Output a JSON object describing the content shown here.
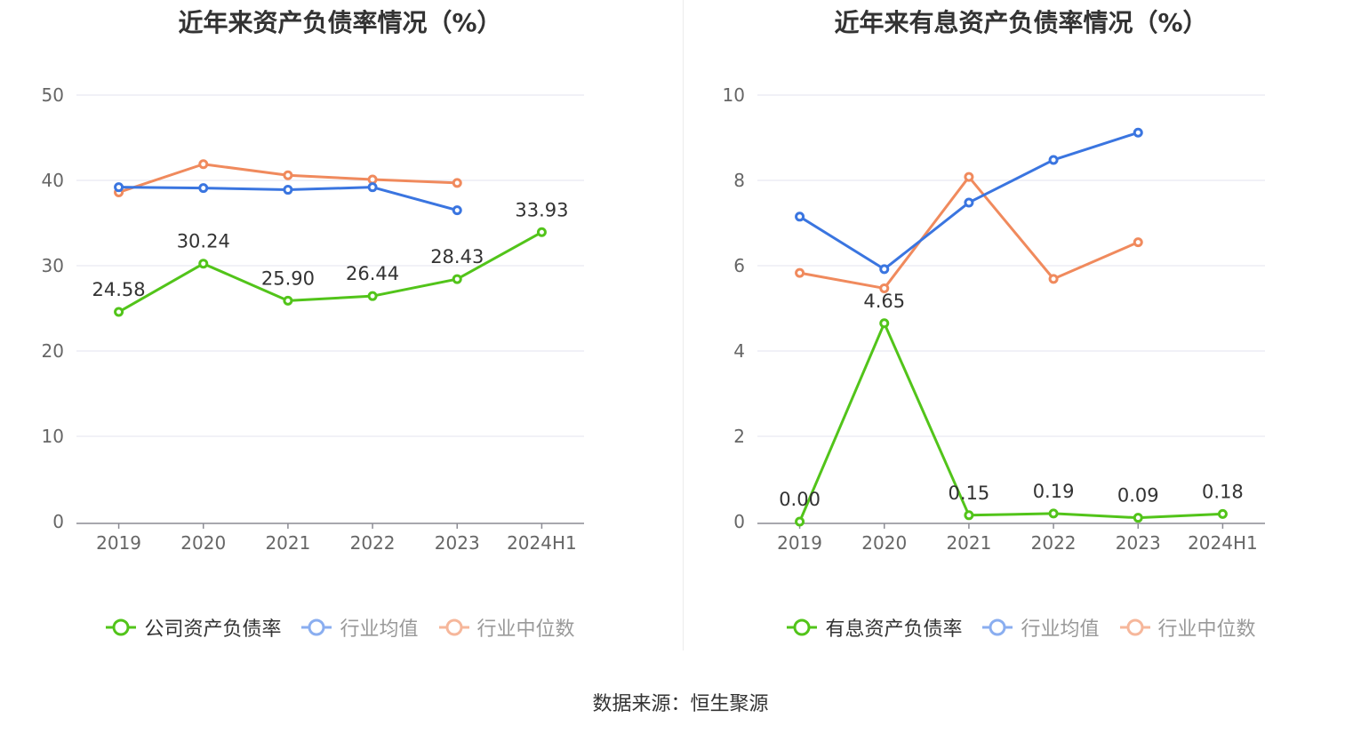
{
  "source": "数据来源：恒生聚源",
  "chart_data": [
    {
      "type": "line",
      "title": "近年来资产负债率情况（%）",
      "categories": [
        "2019",
        "2020",
        "2021",
        "2022",
        "2023",
        "2024H1"
      ],
      "ylim": [
        0,
        50
      ],
      "yticks": [
        0,
        10,
        20,
        30,
        40,
        50
      ],
      "grid": true,
      "legend_position": "bottom",
      "series": [
        {
          "name": "公司资产负债率",
          "color": "#52c41a",
          "values": [
            24.58,
            30.24,
            25.9,
            26.44,
            28.43,
            33.93
          ],
          "labels": [
            "24.58",
            "30.24",
            "25.90",
            "26.44",
            "28.43",
            "33.93"
          ]
        },
        {
          "name": "行业均值",
          "color": "#3a75e0",
          "values": [
            39.2,
            39.1,
            38.9,
            39.2,
            36.5,
            null
          ]
        },
        {
          "name": "行业中位数",
          "color": "#f08a5d",
          "values": [
            38.6,
            41.9,
            40.6,
            40.1,
            39.7,
            null
          ]
        }
      ]
    },
    {
      "type": "line",
      "title": "近年来有息资产负债率情况（%）",
      "categories": [
        "2019",
        "2020",
        "2021",
        "2022",
        "2023",
        "2024H1"
      ],
      "ylim": [
        0,
        10
      ],
      "yticks": [
        0,
        2,
        4,
        6,
        8,
        10
      ],
      "grid": true,
      "legend_position": "bottom",
      "series": [
        {
          "name": "有息资产负债率",
          "color": "#52c41a",
          "values": [
            0.0,
            4.65,
            0.15,
            0.19,
            0.09,
            0.18
          ],
          "labels": [
            "0.00",
            "4.65",
            "0.15",
            "0.19",
            "0.09",
            "0.18"
          ]
        },
        {
          "name": "行业均值",
          "color": "#3a75e0",
          "values": [
            7.15,
            5.92,
            7.48,
            8.48,
            9.12,
            null
          ]
        },
        {
          "name": "行业中位数",
          "color": "#f08a5d",
          "values": [
            5.83,
            5.47,
            8.08,
            5.69,
            6.55,
            null
          ]
        }
      ]
    }
  ]
}
